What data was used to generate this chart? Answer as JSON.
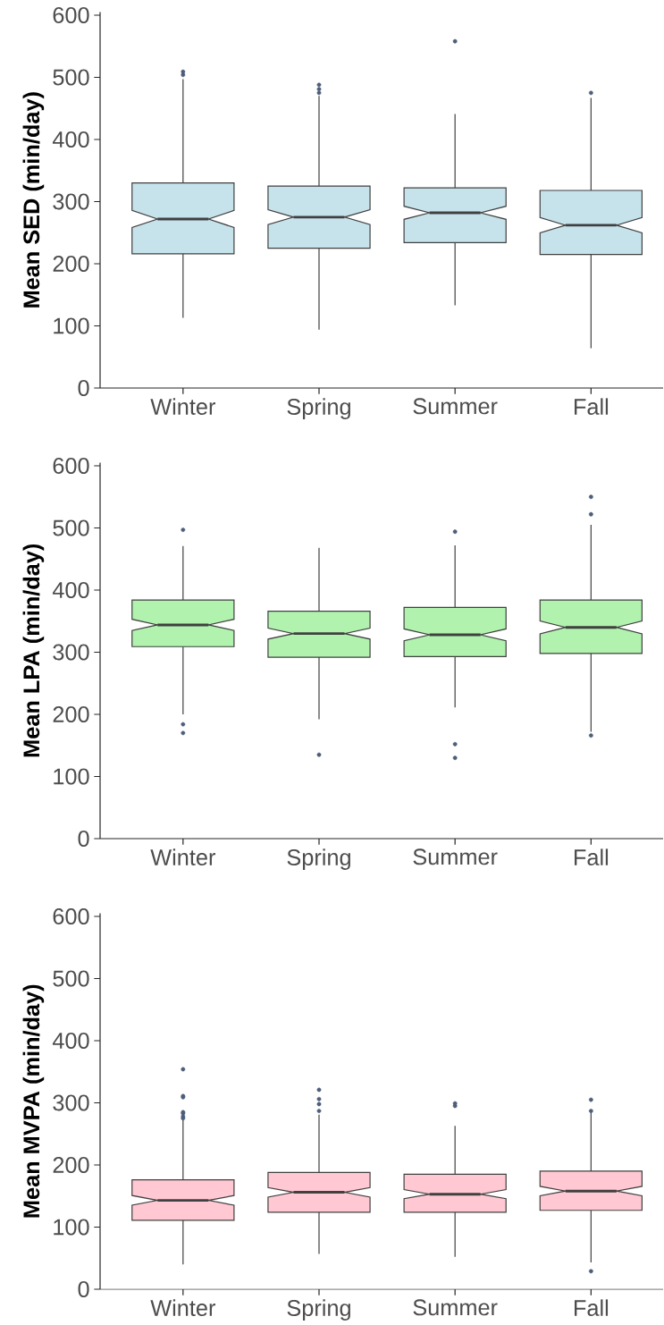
{
  "chart_data": [
    {
      "type": "box",
      "ylabel": "Mean SED (min/day)",
      "categories": [
        "Winter",
        "Spring",
        "Summer",
        "Fall"
      ],
      "color": "#c6e3ec",
      "ylim": [
        0,
        605
      ],
      "yticks": [
        0,
        100,
        200,
        300,
        400,
        500,
        600
      ],
      "boxes": [
        {
          "low": 113,
          "q1": 216,
          "median": 272,
          "q3": 330,
          "high": 497,
          "outliers": [
            504,
            509
          ]
        },
        {
          "low": 94,
          "q1": 225,
          "median": 275,
          "q3": 325,
          "high": 470,
          "outliers": [
            475,
            481,
            488
          ]
        },
        {
          "low": 133,
          "q1": 234,
          "median": 282,
          "q3": 322,
          "high": 441,
          "outliers": [
            558
          ]
        },
        {
          "low": 64,
          "q1": 215,
          "median": 262,
          "q3": 318,
          "high": 467,
          "outliers": [
            475
          ]
        }
      ]
    },
    {
      "type": "box",
      "ylabel": "Mean LPA (min/day)",
      "categories": [
        "Winter",
        "Spring",
        "Summer",
        "Fall"
      ],
      "color": "#b0f2ae",
      "ylim": [
        0,
        605
      ],
      "yticks": [
        0,
        100,
        200,
        300,
        400,
        500,
        600
      ],
      "boxes": [
        {
          "low": 200,
          "q1": 309,
          "median": 344,
          "q3": 384,
          "high": 471,
          "outliers": [
            497,
            184,
            170
          ]
        },
        {
          "low": 192,
          "q1": 292,
          "median": 330,
          "q3": 366,
          "high": 468,
          "outliers": [
            135
          ]
        },
        {
          "low": 211,
          "q1": 293,
          "median": 328,
          "q3": 372,
          "high": 472,
          "outliers": [
            494,
            152,
            130
          ]
        },
        {
          "low": 172,
          "q1": 298,
          "median": 340,
          "q3": 384,
          "high": 505,
          "outliers": [
            522,
            550,
            166
          ]
        }
      ]
    },
    {
      "type": "box",
      "ylabel": "Mean MVPA (min/day)",
      "categories": [
        "Winter",
        "Spring",
        "Summer",
        "Fall"
      ],
      "color": "#ffc8d2",
      "ylim": [
        0,
        605
      ],
      "yticks": [
        0,
        100,
        200,
        300,
        400,
        500,
        600
      ],
      "boxes": [
        {
          "low": 40,
          "q1": 111,
          "median": 143,
          "q3": 176,
          "high": 272,
          "outliers": [
            275,
            278,
            283,
            285,
            309,
            311,
            354
          ]
        },
        {
          "low": 57,
          "q1": 124,
          "median": 156,
          "q3": 188,
          "high": 281,
          "outliers": [
            287,
            298,
            306,
            321
          ]
        },
        {
          "low": 52,
          "q1": 124,
          "median": 153,
          "q3": 185,
          "high": 263,
          "outliers": [
            295,
            299
          ]
        },
        {
          "low": 43,
          "q1": 127,
          "median": 158,
          "q3": 190,
          "high": 285,
          "outliers": [
            287,
            305,
            29
          ]
        }
      ]
    }
  ]
}
